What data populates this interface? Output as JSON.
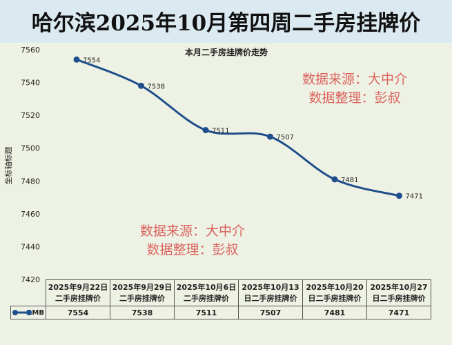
{
  "title": "哈尔滨2025年10月第四周二手房挂牌价",
  "watermark": {
    "line1": "数据来源：大中介",
    "line2": "数据整理：彭叔"
  },
  "colors": {
    "line": "#1f4e8c",
    "header_bg": "#dbe9f1",
    "plot_bg": "#eef2e4",
    "watermark": "#d9534f"
  },
  "chart_data": {
    "type": "line",
    "title": "本月二手房挂牌价走势",
    "ylabel": "坐标轴标题",
    "xlabel": "",
    "ylim": [
      7420,
      7560
    ],
    "yticks": [
      7420,
      7440,
      7460,
      7480,
      7500,
      7520,
      7540,
      7560
    ],
    "grid": false,
    "smooth": true,
    "categories": [
      "2025年9月22日二手房挂牌价",
      "2025年9月29日二手房挂牌价",
      "2025年10月6日二手房挂牌价",
      "2025年10月13日二手房挂牌价",
      "2025年10月20日二手房挂牌价",
      "2025年10月27日二手房挂牌价"
    ],
    "category_lines": [
      [
        "2025年9月22日",
        "二手房挂牌价"
      ],
      [
        "2025年9月29日",
        "二手房挂牌价"
      ],
      [
        "2025年10月6日",
        "二手房挂牌价"
      ],
      [
        "2025年10月13",
        "日二手房挂牌价"
      ],
      [
        "2025年10月20",
        "日二手房挂牌价"
      ],
      [
        "2025年10月27",
        "日二手房挂牌价"
      ]
    ],
    "series": [
      {
        "name": "RMB",
        "values": [
          7554,
          7538,
          7511,
          7507,
          7481,
          7471
        ]
      }
    ],
    "legend": "data-table"
  }
}
